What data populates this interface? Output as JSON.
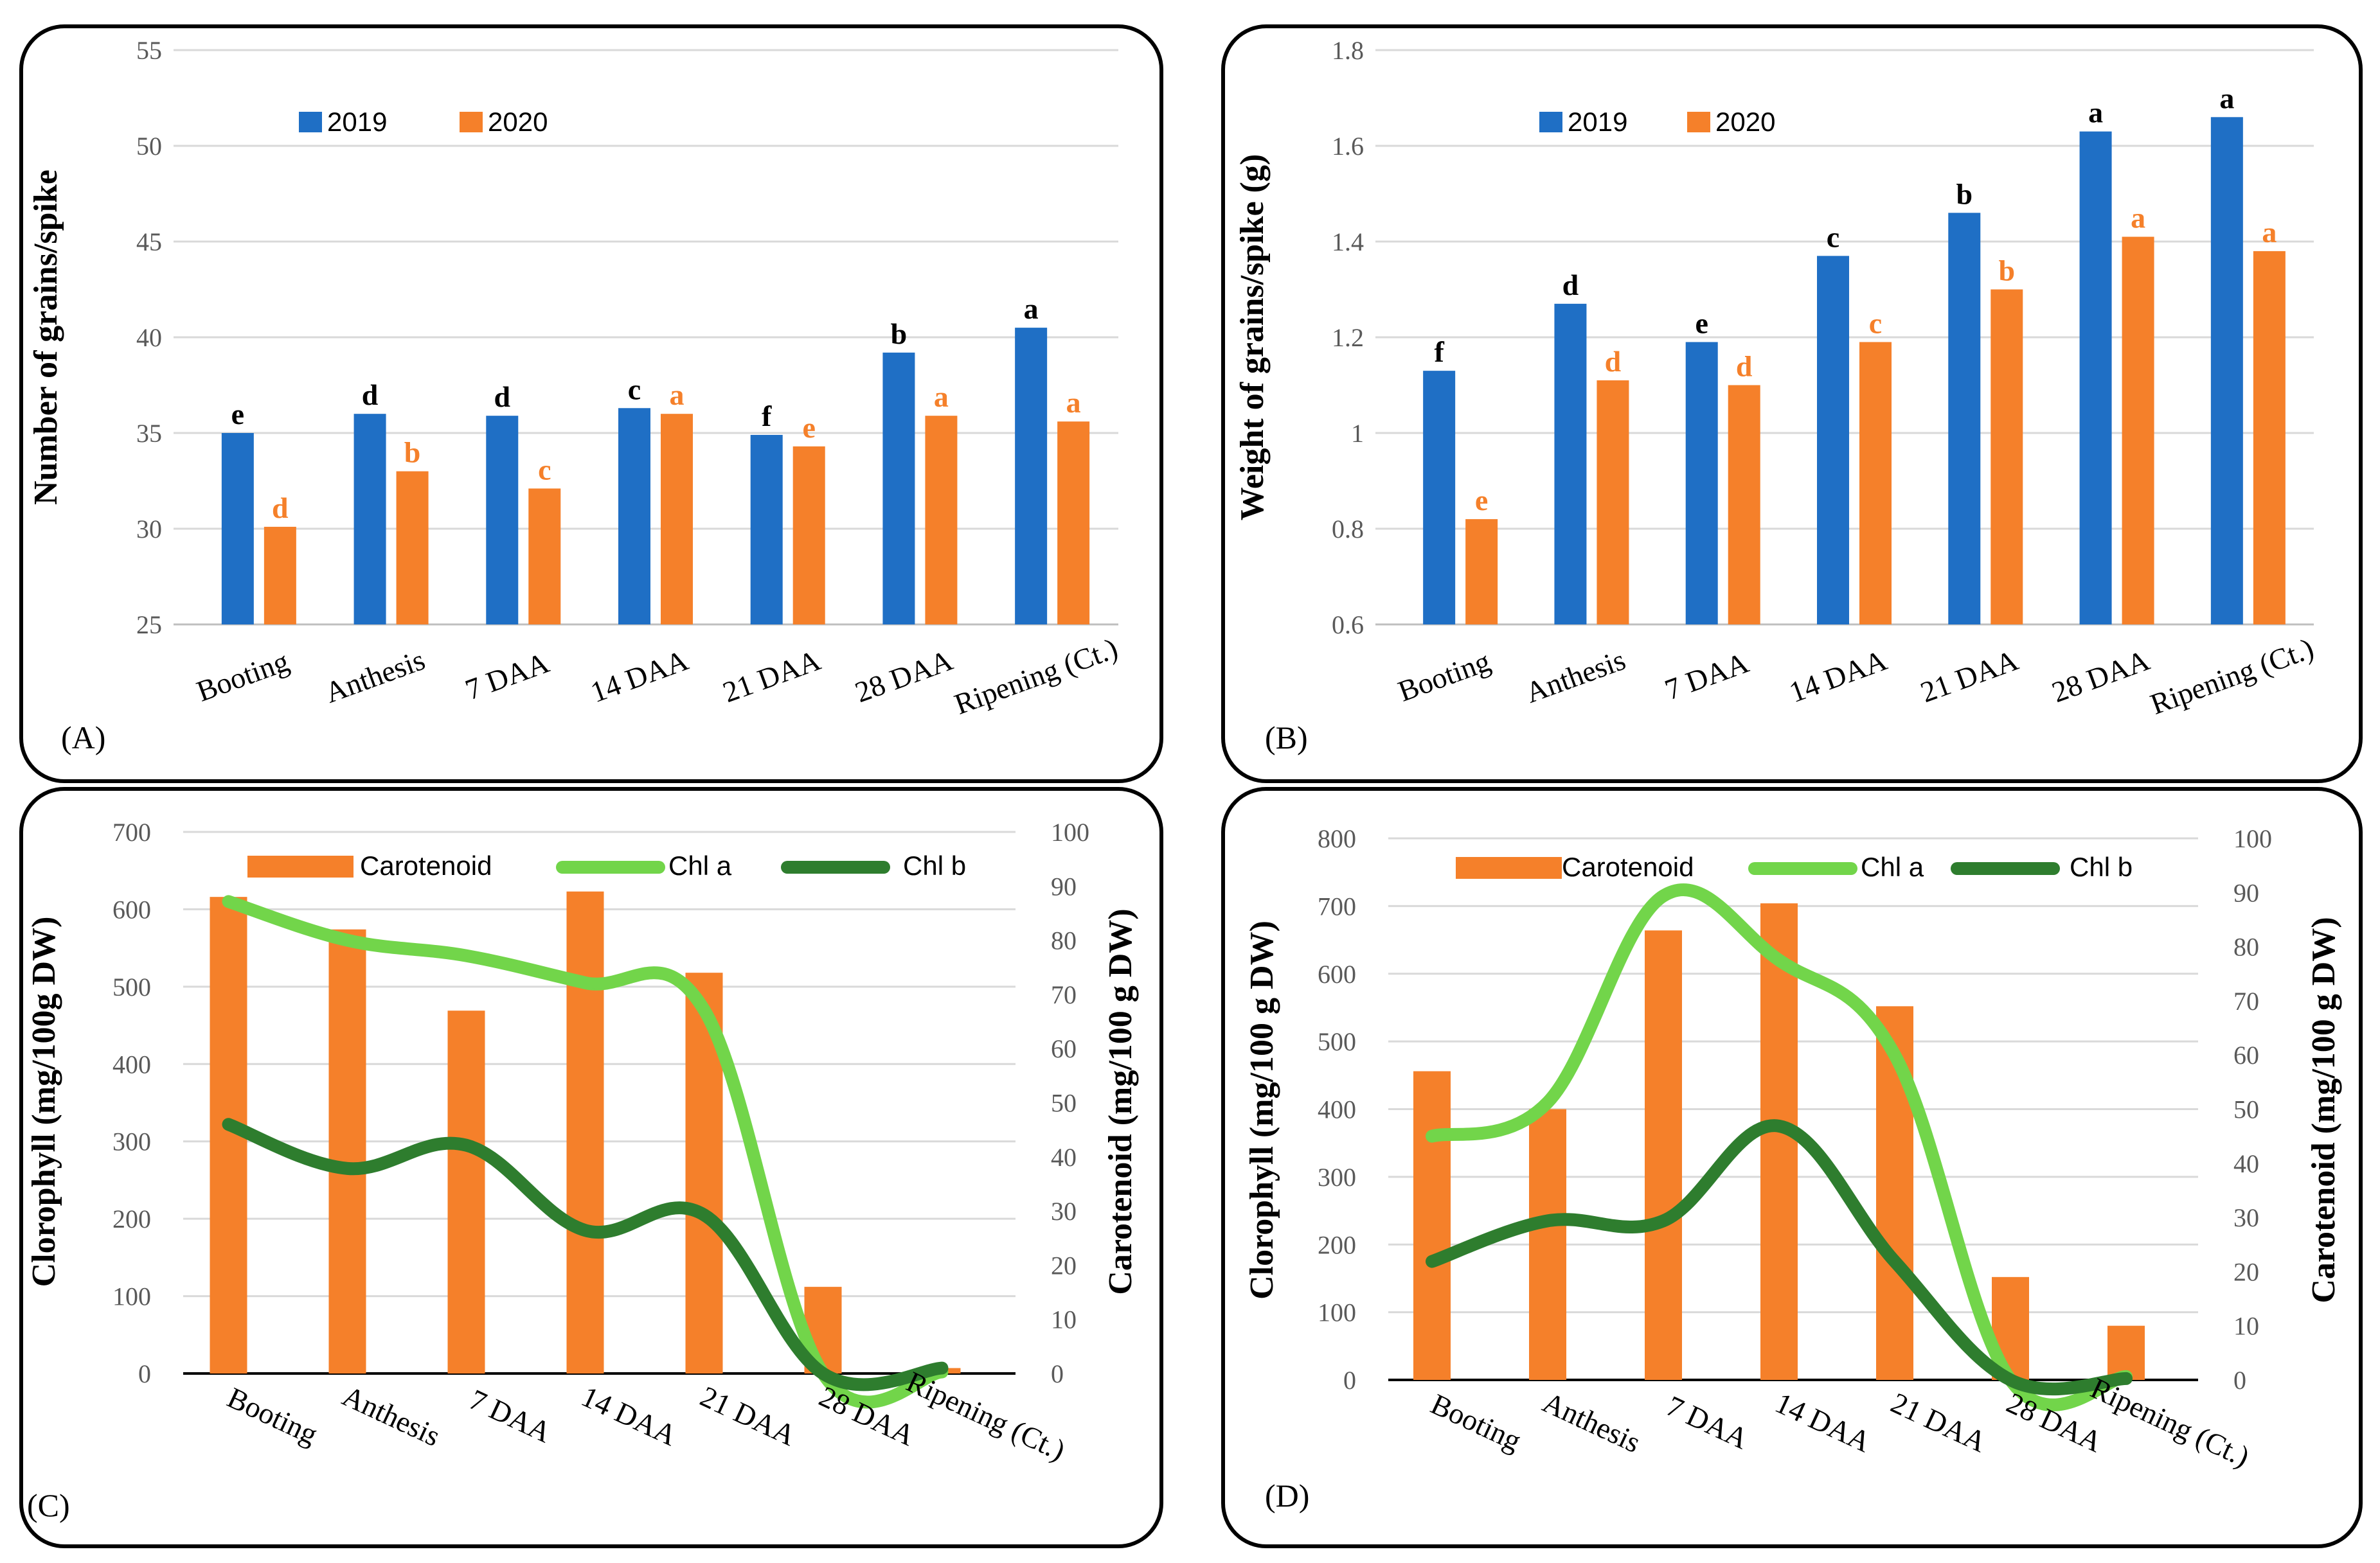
{
  "colors": {
    "blue": "#1f6fc5",
    "orange": "#f5802a",
    "chla": "#72d54a",
    "chlb": "#2e7d2e",
    "grid": "#d9d9d9"
  },
  "chart_data": [
    {
      "id": "A",
      "type": "bar",
      "panel_label": "(A)",
      "categories": [
        "Booting",
        "Anthesis",
        "7 DAA",
        "14 DAA",
        "21 DAA",
        "28 DAA",
        "Ripening (Ct.)"
      ],
      "ylabel": "Number of grains/spike",
      "ylim": [
        25,
        55
      ],
      "yticks": [
        "25",
        "30",
        "35",
        "40",
        "45",
        "50",
        "55"
      ],
      "series": [
        {
          "name": "2019",
          "color": "#1f6fc5",
          "values": [
            35.0,
            36.0,
            35.9,
            36.3,
            34.9,
            39.2,
            40.5
          ],
          "letters": [
            "e",
            "d",
            "d",
            "c",
            "f",
            "b",
            "a"
          ],
          "letter_color": "#000000"
        },
        {
          "name": "2020",
          "color": "#f5802a",
          "values": [
            30.1,
            33.0,
            32.1,
            36.0,
            34.3,
            35.9,
            35.6
          ],
          "letters": [
            "d",
            "b",
            "c",
            "a",
            "e",
            "a",
            "a"
          ],
          "letter_color": "#f5802a"
        }
      ]
    },
    {
      "id": "B",
      "type": "bar",
      "panel_label": "(B)",
      "categories": [
        "Booting",
        "Anthesis",
        "7 DAA",
        "14 DAA",
        "21 DAA",
        "28 DAA",
        "Ripening (Ct.)"
      ],
      "ylabel": "Weight of grains/spike (g)",
      "ylim": [
        0.6,
        1.8
      ],
      "yticks": [
        "0.6",
        "0.8",
        "1",
        "1.2",
        "1.4",
        "1.6",
        "1.8"
      ],
      "series": [
        {
          "name": "2019",
          "color": "#1f6fc5",
          "values": [
            1.13,
            1.27,
            1.19,
            1.37,
            1.46,
            1.63,
            1.66
          ],
          "letters": [
            "f",
            "d",
            "e",
            "c",
            "b",
            "a",
            "a"
          ],
          "letter_color": "#000000"
        },
        {
          "name": "2020",
          "color": "#f5802a",
          "values": [
            0.82,
            1.11,
            1.1,
            1.19,
            1.3,
            1.41,
            1.38
          ],
          "letters": [
            "e",
            "d",
            "d",
            "c",
            "b",
            "a",
            "a"
          ],
          "letter_color": "#f5802a"
        }
      ]
    },
    {
      "id": "C",
      "type": "bar+line",
      "panel_label": "(C)",
      "categories": [
        "Booting",
        "Anthesis",
        "7 DAA",
        "14 DAA",
        "21 DAA",
        "28 DAA",
        "Ripening (Ct.)"
      ],
      "ylabel": "Clorophyll (mg/100g DW)",
      "ylim": [
        0,
        700
      ],
      "yticks": [
        "0",
        "100",
        "200",
        "300",
        "400",
        "500",
        "600",
        "700"
      ],
      "y2label": "Carotenoid (mg/100 g DW)",
      "y2lim": [
        0,
        100
      ],
      "y2ticks": [
        "0",
        "10",
        "20",
        "30",
        "40",
        "50",
        "60",
        "70",
        "80",
        "90",
        "100"
      ],
      "bars": {
        "name": "Carotenoid",
        "color": "#f5802a",
        "values": [
          88,
          82,
          67,
          89,
          74,
          16,
          1
        ]
      },
      "lines": [
        {
          "name": "Chl a",
          "color": "#72d54a",
          "values": [
            610,
            560,
            540,
            505,
            470,
            0,
            2
          ]
        },
        {
          "name": "Chl b",
          "color": "#2e7d2e",
          "values": [
            322,
            265,
            295,
            185,
            205,
            0,
            7
          ]
        }
      ]
    },
    {
      "id": "D",
      "type": "bar+line",
      "panel_label": "(D)",
      "categories": [
        "Booting",
        "Anthesis",
        "7 DAA",
        "14 DAA",
        "21 DAA",
        "28 DAA",
        "Ripening (Ct.)"
      ],
      "ylabel": "Clorophyll (mg/100 g DW)",
      "ylim": [
        0,
        800
      ],
      "yticks": [
        "0",
        "100",
        "200",
        "300",
        "400",
        "500",
        "600",
        "700",
        "800"
      ],
      "y2label": "Carotenoid (mg/100 g DW)",
      "y2lim": [
        0,
        100
      ],
      "y2ticks": [
        "0",
        "10",
        "20",
        "30",
        "40",
        "50",
        "60",
        "70",
        "80",
        "90",
        "100"
      ],
      "bars": {
        "name": "Carotenoid",
        "color": "#f5802a",
        "values": [
          57,
          50,
          83,
          88,
          69,
          19,
          10
        ]
      },
      "lines": [
        {
          "name": "Chl a",
          "color": "#72d54a",
          "values": [
            360,
            410,
            715,
            620,
            480,
            0,
            5
          ]
        },
        {
          "name": "Chl b",
          "color": "#2e7d2e",
          "values": [
            175,
            235,
            235,
            375,
            175,
            0,
            2
          ]
        }
      ]
    }
  ]
}
